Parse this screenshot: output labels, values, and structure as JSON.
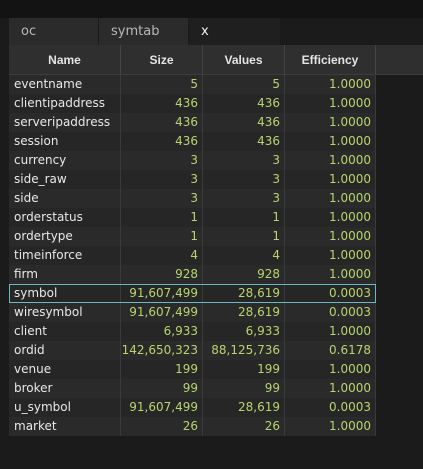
{
  "tabs": [
    {
      "label": "oc"
    },
    {
      "label": "symtab"
    },
    {
      "label": "x"
    }
  ],
  "table": {
    "headers": [
      "Name",
      "Size",
      "Values",
      "Efficiency"
    ],
    "rows": [
      {
        "name": "eventname",
        "size": "5",
        "values": "5",
        "efficiency": "1.0000"
      },
      {
        "name": "clientipaddress",
        "size": "436",
        "values": "436",
        "efficiency": "1.0000"
      },
      {
        "name": "serveripaddress",
        "size": "436",
        "values": "436",
        "efficiency": "1.0000"
      },
      {
        "name": "session",
        "size": "436",
        "values": "436",
        "efficiency": "1.0000"
      },
      {
        "name": "currency",
        "size": "3",
        "values": "3",
        "efficiency": "1.0000"
      },
      {
        "name": "side_raw",
        "size": "3",
        "values": "3",
        "efficiency": "1.0000"
      },
      {
        "name": "side",
        "size": "3",
        "values": "3",
        "efficiency": "1.0000"
      },
      {
        "name": "orderstatus",
        "size": "1",
        "values": "1",
        "efficiency": "1.0000"
      },
      {
        "name": "ordertype",
        "size": "1",
        "values": "1",
        "efficiency": "1.0000"
      },
      {
        "name": "timeinforce",
        "size": "4",
        "values": "4",
        "efficiency": "1.0000"
      },
      {
        "name": "firm",
        "size": "928",
        "values": "928",
        "efficiency": "1.0000"
      },
      {
        "name": "symbol",
        "size": "91,607,499",
        "values": "28,619",
        "efficiency": "0.0003"
      },
      {
        "name": "wiresymbol",
        "size": "91,607,499",
        "values": "28,619",
        "efficiency": "0.0003"
      },
      {
        "name": "client",
        "size": "6,933",
        "values": "6,933",
        "efficiency": "1.0000"
      },
      {
        "name": "ordid",
        "size": "142,650,323",
        "values": "88,125,736",
        "efficiency": "0.6178"
      },
      {
        "name": "venue",
        "size": "199",
        "values": "199",
        "efficiency": "1.0000"
      },
      {
        "name": "broker",
        "size": "99",
        "values": "99",
        "efficiency": "1.0000"
      },
      {
        "name": "u_symbol",
        "size": "91,607,499",
        "values": "28,619",
        "efficiency": "0.0003"
      },
      {
        "name": "market",
        "size": "26",
        "values": "26",
        "efficiency": "1.0000"
      }
    ],
    "selected_row": "symbol"
  },
  "colors": {
    "background": "#1b1b1b",
    "header_bg": "#2f2f2f",
    "row_bg": "#2a2a2a",
    "name_text": "#e8e8e8",
    "number_text": "#b7d56f",
    "selection_border": "#6ab8c2"
  }
}
